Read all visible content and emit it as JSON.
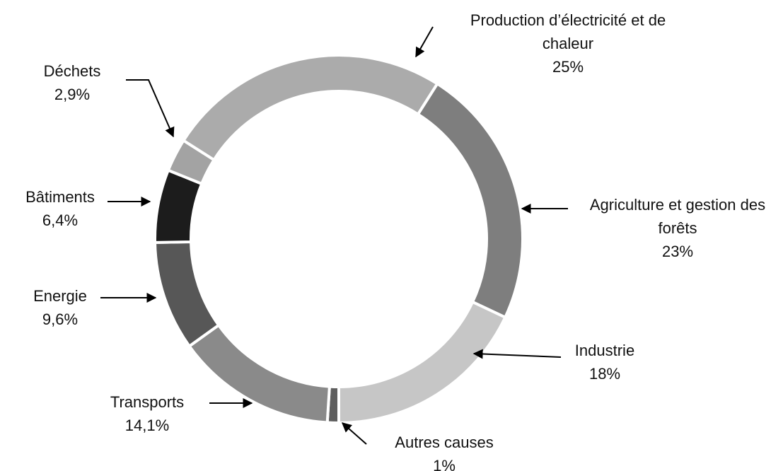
{
  "chart_data": {
    "type": "donut",
    "categories": [
      "Autres causes",
      "Transports",
      "Energie",
      "Bâtiments",
      "Déchets",
      "Production d’électricité et de chaleur",
      "Agriculture et gestion des forêts",
      "Industrie"
    ],
    "values": [
      1,
      14.1,
      9.6,
      6.4,
      2.9,
      25,
      23,
      18
    ],
    "value_labels": [
      "1%",
      "14,1%",
      "9,6%",
      "6,4%",
      "2,9%",
      "25%",
      "23%",
      "18%"
    ],
    "colors": [
      "#5e5e5e",
      "#8a8a8a",
      "#575757",
      "#1c1c1c",
      "#a3a3a3",
      "#ababab",
      "#7e7e7e",
      "#c6c6c6"
    ]
  }
}
